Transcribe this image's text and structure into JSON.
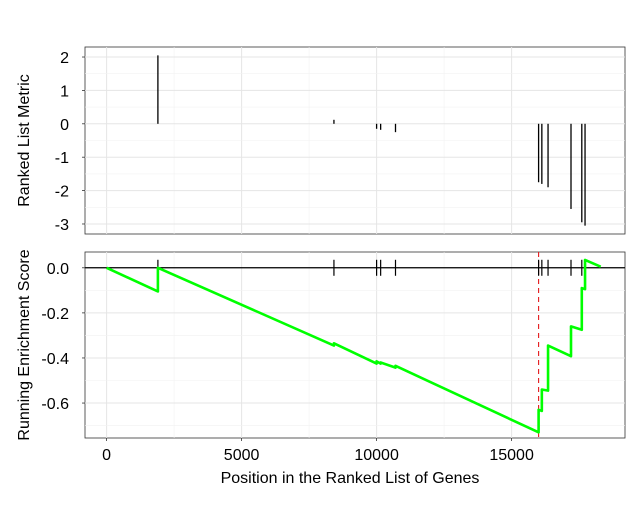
{
  "chart_data": [
    {
      "type": "bar",
      "name": "ranked-list-metric",
      "ylabel": "Ranked List Metric",
      "xlim": [
        -800,
        19200
      ],
      "ylim": [
        -3.3,
        2.3
      ],
      "yticks": [
        2,
        1,
        0,
        -1,
        -2,
        -3
      ],
      "xticks": [
        0,
        5000,
        10000,
        15000
      ],
      "grid": true,
      "color": "#000000",
      "points": [
        {
          "x": 1900,
          "y": 2.05
        },
        {
          "x": 8420,
          "y": 0.12
        },
        {
          "x": 10000,
          "y": -0.15
        },
        {
          "x": 10150,
          "y": -0.18
        },
        {
          "x": 10700,
          "y": -0.25
        },
        {
          "x": 16000,
          "y": -1.75
        },
        {
          "x": 16120,
          "y": -1.8
        },
        {
          "x": 16350,
          "y": -1.9
        },
        {
          "x": 17200,
          "y": -2.55
        },
        {
          "x": 17600,
          "y": -2.95
        },
        {
          "x": 17720,
          "y": -3.05
        }
      ]
    },
    {
      "type": "line",
      "name": "running-enrichment-score",
      "ylabel": "Running Enrichment Score",
      "xlabel": "Position in the Ranked List of Genes",
      "xlim": [
        -800,
        19200
      ],
      "ylim": [
        -0.755,
        0.07
      ],
      "yticks": [
        "0.0",
        "-0.2",
        "-0.4",
        "-0.6"
      ],
      "xticks": [
        "0",
        "5000",
        "10000",
        "15000"
      ],
      "grid": true,
      "line_color": "#00ff00",
      "zero_line_color": "#000000",
      "peak_line": {
        "x": 16000,
        "color": "#e41a1c",
        "style": "dashed"
      },
      "hits": [
        1900,
        8420,
        10000,
        10150,
        10700,
        16000,
        16120,
        16350,
        17200,
        17600,
        17720
      ],
      "x": [
        0,
        1900,
        1900,
        8420,
        8420,
        10000,
        10000,
        10150,
        10150,
        10700,
        10700,
        16000,
        16000,
        16120,
        16120,
        16350,
        16350,
        17200,
        17200,
        17600,
        17600,
        17720,
        17720,
        18300
      ],
      "y": [
        0.0,
        -0.105,
        0.0,
        -0.345,
        -0.335,
        -0.425,
        -0.415,
        -0.425,
        -0.42,
        -0.443,
        -0.435,
        -0.73,
        -0.63,
        -0.635,
        -0.54,
        -0.545,
        -0.345,
        -0.392,
        -0.26,
        -0.275,
        -0.09,
        -0.095,
        0.035,
        0.005
      ]
    }
  ]
}
